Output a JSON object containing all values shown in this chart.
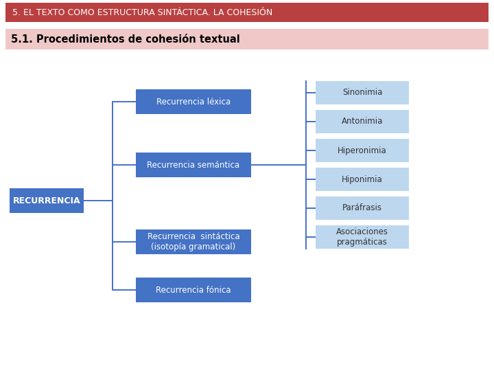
{
  "title1": "5. EL TEXTO COMO ESTRUCTURA SINTÁCTICA. LA COHESIÓN",
  "title2": "5.1. Procedimientos de cohesión textual",
  "title1_bg": "#b94040",
  "title2_bg": "#f0c8c8",
  "title_text_color1": "#ffffff",
  "title_text_color2": "#000000",
  "main_node": "RECURRENCIA",
  "main_node_bg": "#4472c4",
  "main_node_text": "#ffffff",
  "branch_nodes": [
    "Recurrencia léxica",
    "Recurrencia semántica",
    "Recurrencia  sintáctica\n(isotopía gramatical)",
    "Recurrencia fónica"
  ],
  "branch_node_bg": "#4472c4",
  "branch_node_text": "#ffffff",
  "leaf_nodes": [
    "Sinonimia",
    "Antonimia",
    "Hiperonimia",
    "Hiponimia",
    "Paráfrasis",
    "Asociaciones\npragmáticas"
  ],
  "leaf_node_bg": "#bdd7ee",
  "leaf_node_text": "#333333",
  "line_color": "#4472c4",
  "bg_color": "#ffffff",
  "figsize": [
    7.2,
    5.4
  ],
  "dpi": 100
}
